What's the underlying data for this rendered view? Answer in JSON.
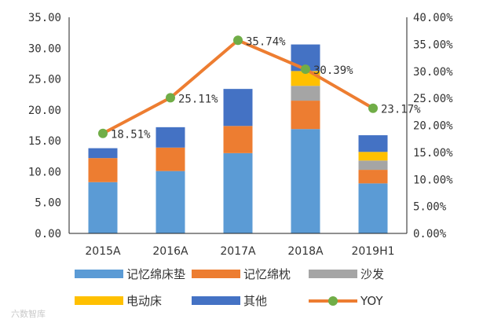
{
  "chart_data": {
    "type": "bar",
    "stacked": true,
    "categories": [
      "2015A",
      "2016A",
      "2017A",
      "2018A",
      "2019H1"
    ],
    "series": [
      {
        "name": "记忆绵床垫",
        "color": "#5b9bd5",
        "values": [
          8.3,
          10.1,
          13.0,
          16.9,
          8.1
        ]
      },
      {
        "name": "记忆绵枕",
        "color": "#ed7d31",
        "values": [
          3.9,
          3.8,
          4.4,
          4.6,
          2.2
        ]
      },
      {
        "name": "沙发",
        "color": "#a5a5a5",
        "values": [
          0,
          0,
          0,
          2.4,
          1.5
        ]
      },
      {
        "name": "电动床",
        "color": "#ffc000",
        "values": [
          0,
          0,
          0,
          2.4,
          1.4
        ]
      },
      {
        "name": "其他",
        "color": "#4472c4",
        "values": [
          1.6,
          3.3,
          6.0,
          4.3,
          2.7
        ]
      }
    ],
    "line": {
      "name": "YOY",
      "color": "#ed7d31",
      "marker_color": "#70ad47",
      "values": [
        18.51,
        25.11,
        35.74,
        30.39,
        23.17
      ],
      "labels": [
        "18.51%",
        "25.11%",
        "35.74%",
        "30.39%",
        "23.17%"
      ]
    },
    "y_left": {
      "min": 0,
      "max": 35,
      "step": 5,
      "ticks": [
        "0.00",
        "5.00",
        "10.00",
        "15.00",
        "20.00",
        "25.00",
        "30.00",
        "35.00"
      ]
    },
    "y_right": {
      "min": 0,
      "max": 40,
      "step": 5,
      "ticks": [
        "0.00%",
        "5.00%",
        "10.00%",
        "15.00%",
        "20.00%",
        "25.00%",
        "30.00%",
        "35.00%",
        "40.00%"
      ]
    },
    "legend_position": "bottom",
    "watermark": "六数智库"
  }
}
